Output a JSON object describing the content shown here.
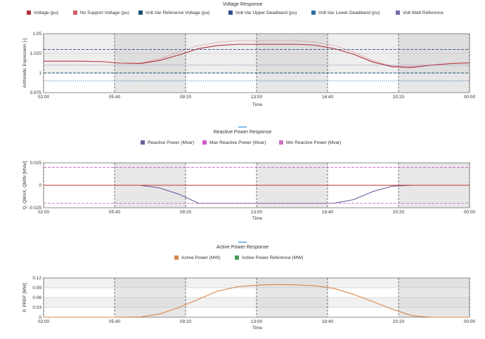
{
  "chart_data": [
    {
      "type": "line",
      "title": "Voltage Response",
      "xlabel": "Time",
      "ylabel": "Arithmetic Expression [-]",
      "x_ticks": [
        "02:00",
        "05:40",
        "09:20",
        "13:00",
        "16:40",
        "20:20",
        "00:00"
      ],
      "y_ticks": [
        "0.975",
        "1",
        "1.025",
        "1.05"
      ],
      "ylim": [
        0.975,
        1.05
      ],
      "shaded_bands": [
        [
          1.0,
          1.025
        ],
        [
          1.025,
          1.05
        ]
      ],
      "legend": {
        "position": "top"
      },
      "colors": {
        "voltage": "#b0303c",
        "no_support": "#d05b6a",
        "vv_ref": "#1b4f72",
        "vv_upper": "#2e4a8a",
        "vv_lower": "#2e6fa0",
        "vw_ref": "#7a6aa8"
      },
      "series": [
        {
          "name": "Voltage (pu)",
          "style": "solid",
          "color": "#b0303c",
          "x": [
            0,
            1,
            2,
            3,
            4,
            5,
            6,
            7,
            8,
            9,
            10,
            11,
            12,
            13,
            14,
            15,
            16,
            17,
            18,
            19,
            20,
            21,
            22
          ],
          "y": [
            1.015,
            1.015,
            1.015,
            1.0145,
            1.0125,
            1.012,
            1.016,
            1.023,
            1.031,
            1.035,
            1.0365,
            1.0365,
            1.0365,
            1.0365,
            1.0355,
            1.031,
            1.024,
            1.014,
            1.008,
            1.007,
            1.01,
            1.012,
            1.013
          ]
        },
        {
          "name": "No Support Voltage (pu)",
          "style": "dotted",
          "color": "#d05b6a",
          "x": [
            0,
            1,
            2,
            3,
            4,
            5,
            6,
            7,
            8,
            9,
            10,
            11,
            12,
            13,
            14,
            15,
            16,
            17,
            18,
            19,
            20,
            21,
            22
          ],
          "y": [
            1.015,
            1.015,
            1.015,
            1.0145,
            1.0125,
            1.0125,
            1.018,
            1.027,
            1.035,
            1.039,
            1.041,
            1.041,
            1.041,
            1.041,
            1.0395,
            1.035,
            1.027,
            1.016,
            1.009,
            1.008,
            1.01,
            1.012,
            1.013
          ]
        },
        {
          "name": "Volt-Var Reference Voltage (pu)",
          "style": "dashed",
          "color": "#1b4f72",
          "constant": 1.0
        },
        {
          "name": "Volt-Var Upper Deadband (pu)",
          "style": "dashed",
          "color": "#2e4a8a",
          "constant": 1.03
        },
        {
          "name": "Volt-Var Lower Deadband (pu)",
          "style": "dotted",
          "color": "#2e6fa0",
          "constant": 0.99
        },
        {
          "name": "Volt-Watt Reference",
          "style": "dotted",
          "color": "#7a6aa8",
          "constant": 1.01
        }
      ]
    },
    {
      "type": "line",
      "title": "Reactive Power Response",
      "xlabel": "Time",
      "ylabel": "Q, QMAX, QMIN [MVar]",
      "x_ticks": [
        "02:00",
        "05:40",
        "09:20",
        "13:00",
        "16:40",
        "20:20",
        "00:00"
      ],
      "y_ticks": [
        "-0.025",
        "0",
        "0.025"
      ],
      "ylim": [
        -0.025,
        0.025
      ],
      "legend": {
        "position": "top"
      },
      "series": [
        {
          "name": "Reactive Power (Mvar)",
          "style": "solid",
          "color": "#6e5e9c",
          "x": [
            0,
            1,
            2,
            3,
            4,
            5,
            6,
            7,
            8,
            9,
            10,
            11,
            12,
            13,
            14,
            15,
            16,
            17,
            18,
            19,
            20,
            21,
            22
          ],
          "y": [
            0,
            0,
            0,
            0,
            0,
            0,
            -0.003,
            -0.01,
            -0.02,
            -0.02,
            -0.02,
            -0.02,
            -0.02,
            -0.02,
            -0.02,
            -0.02,
            -0.016,
            -0.007,
            -0.001,
            0,
            0,
            0,
            0
          ]
        },
        {
          "name": "Max Reactive Power (Mvar)",
          "style": "dashed",
          "color": "#d05ac8",
          "constant": 0.02
        },
        {
          "name": "Min Reactive Power (Mvar)",
          "style": "dashed",
          "color": "#d070c8",
          "constant": -0.02
        },
        {
          "name": "",
          "style": "solid",
          "color": "#c0302c",
          "constant": 0.0
        }
      ]
    },
    {
      "type": "line",
      "title": "Active Power Response",
      "xlabel": "Time",
      "ylabel": "P, PREF [MW]",
      "x_ticks": [
        "02:00",
        "05:40",
        "09:20",
        "13:00",
        "16:40",
        "20:20",
        "00:00"
      ],
      "y_ticks": [
        "0",
        "0.03",
        "0.06",
        "0.09",
        "0.12"
      ],
      "ylim": [
        0,
        0.12
      ],
      "legend": {
        "position": "top"
      },
      "series": [
        {
          "name": "Active Power (MW)",
          "style": "solid",
          "color": "#d8874a",
          "x": [
            0,
            1,
            2,
            3,
            4,
            5,
            6,
            7,
            8,
            9,
            10,
            11,
            12,
            13,
            14,
            15,
            16,
            17,
            18,
            19,
            20,
            21,
            22
          ],
          "y": [
            0,
            0,
            0,
            0,
            0,
            0.001,
            0.01,
            0.03,
            0.055,
            0.08,
            0.093,
            0.098,
            0.1,
            0.099,
            0.096,
            0.088,
            0.07,
            0.048,
            0.025,
            0.005,
            0,
            0,
            0
          ]
        },
        {
          "name": "Active Power Reference (MW)",
          "style": "solid",
          "color": "#4a9a5a"
        }
      ]
    }
  ]
}
